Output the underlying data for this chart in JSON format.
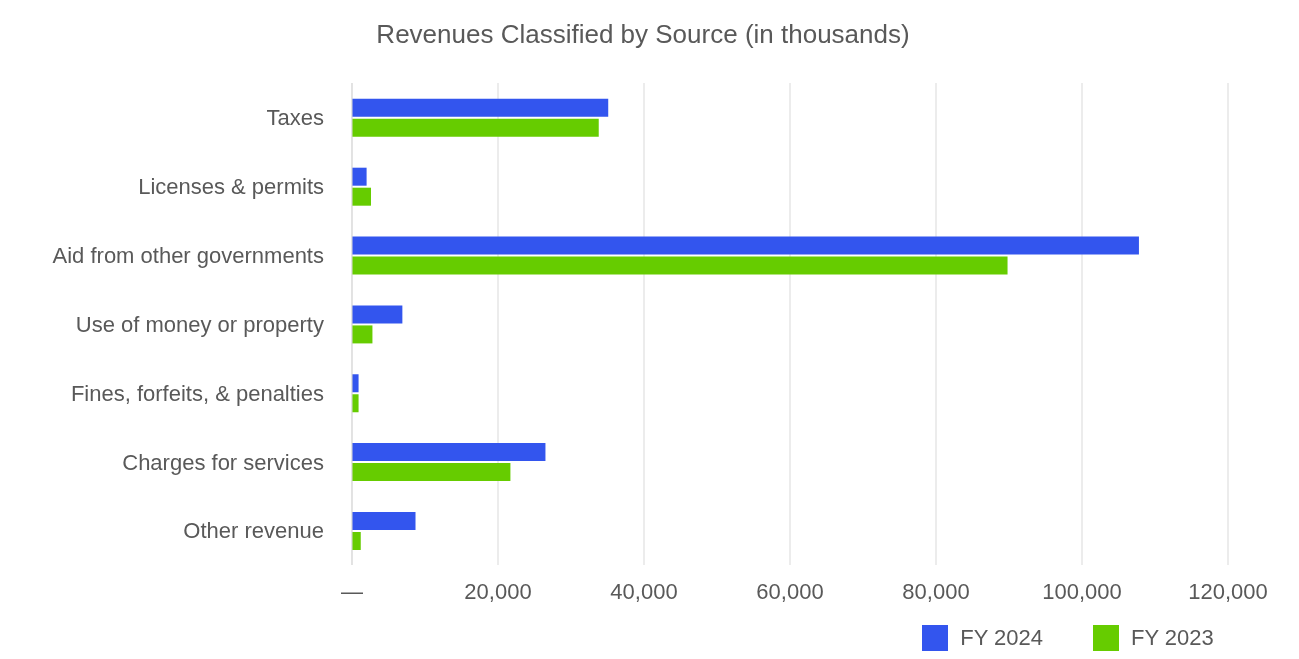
{
  "chart_data": {
    "type": "bar",
    "orientation": "horizontal",
    "title": "Revenues Classified by Source (in thousands)",
    "categories": [
      "Taxes",
      "Licenses & permits",
      "Aid from other governments",
      "Use of money or property",
      "Fines, forfeits, & penalties",
      "Charges for services",
      "Other revenue"
    ],
    "series": [
      {
        "name": "FY 2024",
        "color": "#3355ee",
        "values": [
          35100,
          2000,
          107800,
          6900,
          900,
          26500,
          8700
        ]
      },
      {
        "name": "FY 2023",
        "color": "#66cc00",
        "values": [
          33800,
          2600,
          89800,
          2800,
          900,
          21700,
          1200
        ]
      }
    ],
    "xlim": [
      0,
      120000
    ],
    "xticks": [
      {
        "value": 0,
        "label": "—"
      },
      {
        "value": 20000,
        "label": "20,000"
      },
      {
        "value": 40000,
        "label": "40,000"
      },
      {
        "value": 60000,
        "label": "60,000"
      },
      {
        "value": 80000,
        "label": "80,000"
      },
      {
        "value": 100000,
        "label": "100,000"
      },
      {
        "value": 120000,
        "label": "120,000"
      }
    ],
    "grid": "x",
    "legend": "bottom"
  }
}
